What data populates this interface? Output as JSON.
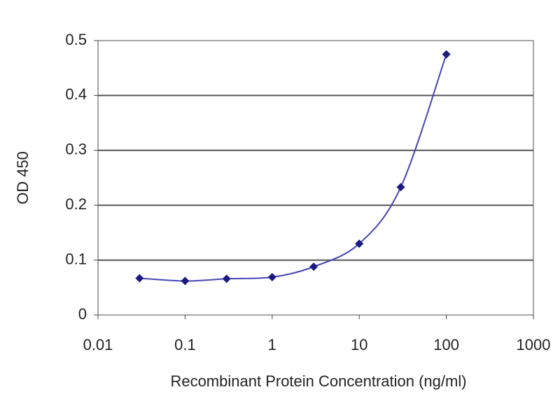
{
  "chart_data": {
    "type": "line",
    "xlabel": "Recombinant Protein Concentration (ng/ml)",
    "ylabel": "OD 450",
    "x": [
      0.03,
      0.1,
      0.3,
      1,
      3,
      10,
      30,
      100
    ],
    "series": [
      {
        "color": "#1a1a80",
        "line_color": "#4646b4",
        "values": [
          0.067,
          0.062,
          0.066,
          0.069,
          0.088,
          0.13,
          0.233,
          0.475
        ]
      }
    ],
    "xlim": [
      0.01,
      1000
    ],
    "xticks": [
      0.01,
      0.1,
      1,
      10,
      100,
      1000
    ],
    "xscale": "log",
    "ylim": [
      0,
      0.5
    ],
    "yticks": [
      0,
      0.1,
      0.2,
      0.3,
      0.4,
      0.5
    ],
    "grid": true
  }
}
